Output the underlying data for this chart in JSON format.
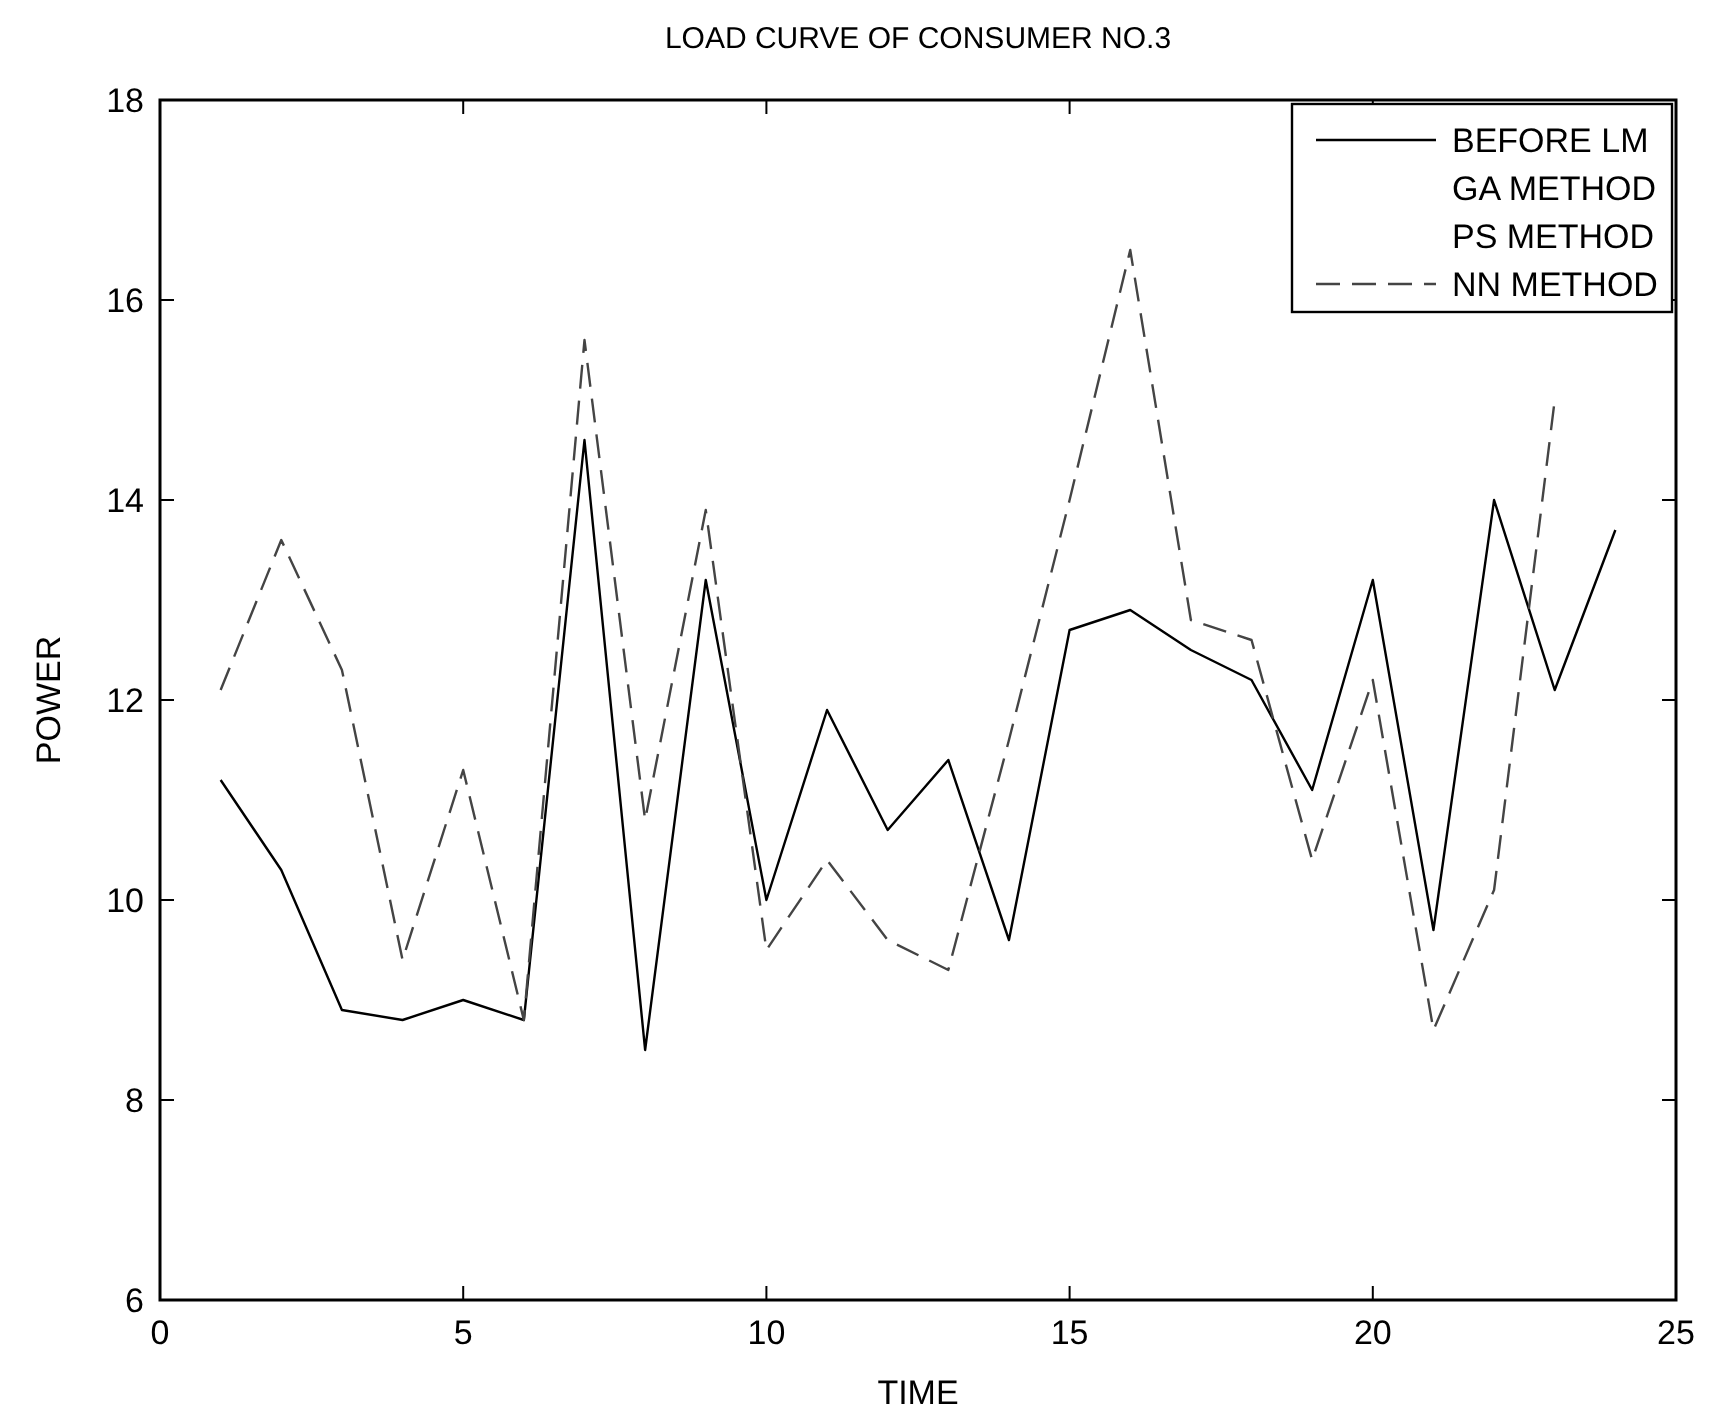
{
  "chart_data": {
    "type": "line",
    "title": "LOAD CURVE OF CONSUMER NO.3",
    "xlabel": "TIME",
    "ylabel": "POWER",
    "x": [
      1,
      2,
      3,
      4,
      5,
      6,
      7,
      8,
      9,
      10,
      11,
      12,
      13,
      14,
      15,
      16,
      17,
      18,
      19,
      20,
      21,
      22,
      23,
      24
    ],
    "xlim": [
      0,
      25
    ],
    "xticks": [
      0,
      5,
      10,
      15,
      20,
      25
    ],
    "ylim": [
      6,
      18
    ],
    "yticks": [
      6,
      8,
      10,
      12,
      14,
      16,
      18
    ],
    "grid": false,
    "legend": "top right",
    "marker": "none",
    "series": [
      {
        "name": "BEFORE LM",
        "color": "#000000",
        "line_style": "solid",
        "values": [
          11.2,
          10.3,
          8.9,
          8.8,
          9.0,
          8.8,
          14.6,
          8.5,
          13.2,
          10.0,
          11.9,
          10.7,
          11.4,
          9.6,
          12.7,
          12.9,
          12.5,
          12.2,
          11.1,
          13.2,
          9.7,
          14.0,
          12.1,
          13.7
        ]
      },
      {
        "name": "GA METHOD",
        "values": [
          null,
          null,
          null,
          null,
          null,
          null,
          null,
          null,
          null,
          null,
          null,
          null,
          null,
          null,
          null,
          null,
          null,
          null,
          null,
          null,
          null,
          null,
          null,
          null
        ]
      },
      {
        "name": "PS METHOD",
        "values": [
          null,
          null,
          null,
          null,
          null,
          null,
          null,
          null,
          null,
          null,
          null,
          null,
          null,
          null,
          null,
          null,
          null,
          null,
          null,
          null,
          null,
          null,
          null,
          null
        ]
      },
      {
        "name": "NN METHOD",
        "color": "#444444",
        "line_style": "dashed",
        "values": [
          12.1,
          13.6,
          12.3,
          9.4,
          11.3,
          8.8,
          15.6,
          10.8,
          13.9,
          9.5,
          10.4,
          9.6,
          9.3,
          11.6,
          14.0,
          16.5,
          12.8,
          12.6,
          10.4,
          12.2,
          8.7,
          10.1,
          15.0,
          null
        ]
      }
    ]
  }
}
